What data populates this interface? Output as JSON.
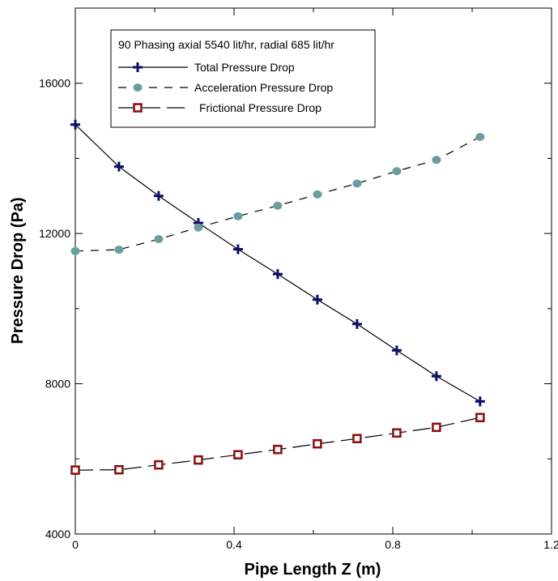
{
  "chart_data": {
    "type": "line",
    "title": "",
    "xlabel": "Pipe Length Z (m)",
    "ylabel": "Pressure Drop (Pa)",
    "xlim": [
      0,
      1.2
    ],
    "ylim": [
      4000,
      18000
    ],
    "x_ticks": [
      0,
      0.4,
      0.8,
      1.2
    ],
    "x_tick_labels": [
      "0",
      "0.4",
      "0.8",
      "1.2"
    ],
    "y_ticks": [
      4000,
      8000,
      12000,
      16000
    ],
    "y_tick_labels": [
      "4000",
      "8000",
      "12000",
      "16000"
    ],
    "grid": false,
    "legend": {
      "placement": "top-left",
      "header": "90 Phasing axial 5540 lit/hr, radial 685 lit/hr"
    },
    "x": [
      0,
      0.11,
      0.21,
      0.31,
      0.41,
      0.51,
      0.61,
      0.71,
      0.81,
      0.91,
      1.02
    ],
    "series": [
      {
        "name": "Total Pressure Drop",
        "marker": "plus",
        "line": "solid",
        "color": "#0d0d6b",
        "values": [
          14900,
          13780,
          13000,
          12280,
          11580,
          10920,
          10240,
          9590,
          8890,
          8200,
          7530
        ]
      },
      {
        "name": "Acceleration Pressure Drop",
        "marker": "circle",
        "line": "dashed",
        "color": "#6a9e9e",
        "values": [
          11530,
          11570,
          11850,
          12160,
          12460,
          12740,
          13040,
          13330,
          13660,
          13960,
          14570
        ]
      },
      {
        "name": "Frictional Pressure Drop",
        "marker": "square",
        "line": "long-dash",
        "color": "#8b0d0d",
        "values": [
          5700,
          5710,
          5840,
          5970,
          6110,
          6250,
          6400,
          6540,
          6690,
          6840,
          7100
        ]
      }
    ]
  }
}
